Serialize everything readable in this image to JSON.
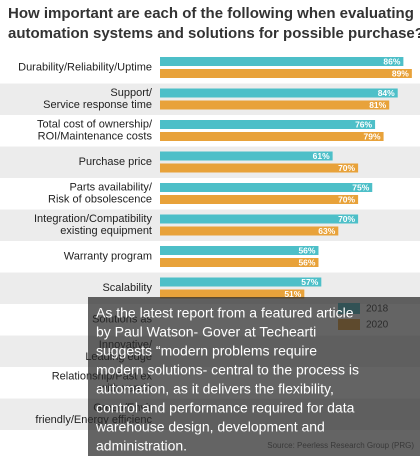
{
  "chart_data": {
    "type": "hbar",
    "title": [
      "How important are each of the following when evaluating",
      "automation systems and solutions for possible purchase?"
    ],
    "categories": [
      [
        "Durability/Reliability/Uptime"
      ],
      [
        "Support/",
        "Service response time"
      ],
      [
        "Total cost of ownership/",
        "ROI/Maintenance costs"
      ],
      [
        "Purchase price"
      ],
      [
        "Parts availability/",
        "Risk of obsolescence"
      ],
      [
        "Integration/Compatibility",
        "existing equipment"
      ],
      [
        "Warranty program"
      ],
      [
        "Scalability"
      ],
      [
        "Solutions as"
      ],
      [
        "Innovative/",
        "Leading edge"
      ],
      [
        "Relationship/Past ex",
        "with vendo"
      ],
      [
        "Green/Envir",
        "friendly/Energy efficienc"
      ]
    ],
    "series": [
      {
        "name": "2018",
        "color": "#4dbfc8",
        "values": [
          86,
          84,
          76,
          61,
          75,
          70,
          56,
          57,
          null,
          null,
          null,
          null
        ],
        "value_labels": [
          "86%",
          "84%",
          "76%",
          "61%",
          "75%",
          "70%",
          "56%",
          "57%",
          null,
          null,
          null,
          null
        ]
      },
      {
        "name": "2020",
        "color": "#e8a23a",
        "values": [
          89,
          81,
          79,
          70,
          70,
          63,
          56,
          51,
          null,
          null,
          null,
          null
        ],
        "value_labels": [
          "89%",
          "81%",
          "79%",
          "70%",
          "70%",
          "63%",
          "56%",
          "51%",
          null,
          null,
          null,
          null
        ]
      }
    ],
    "xlim": [
      0,
      100
    ],
    "source": "Source: Peerless Research Group (PRG)"
  },
  "overlay_text": [
    "As the latest report from a featured article",
    "by Paul Watson- Gover at Techearti",
    "suggests “modern problems require",
    "modern solutions- central to the process is",
    "automation, as it delivers the flexibility,",
    "control and performance required for data",
    "warehouse design, development and",
    "administration."
  ]
}
